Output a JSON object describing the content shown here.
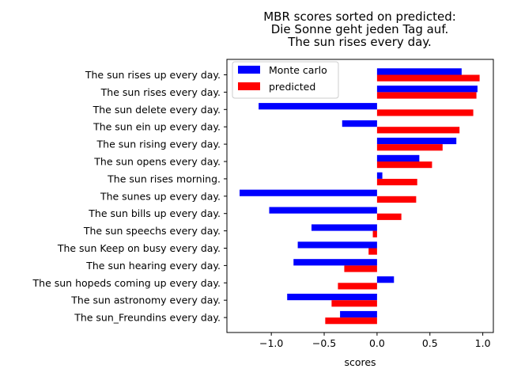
{
  "chart_data": {
    "type": "bar",
    "orientation": "horizontal",
    "title": "MBR scores sorted on predicted:\nDie Sonne geht jeden Tag auf.\nThe sun rises every day.",
    "xlabel": "scores",
    "ylabel": "",
    "xlim": [
      -1.42,
      1.1
    ],
    "xticks": [
      -1.0,
      -0.5,
      0.0,
      0.5,
      1.0
    ],
    "xtick_labels": [
      "−1.0",
      "−0.5",
      "0.0",
      "0.5",
      "1.0"
    ],
    "grid": false,
    "legend_position": "upper-left",
    "categories": [
      "The sun rises up every day.",
      "The sun rises every day.",
      "The sun delete every day.",
      "The sun ein up every day.",
      "The sun rising every day.",
      "The sun opens every day.",
      "The sun rises morning.",
      "The sunes up every day.",
      "The sun bills up every day.",
      "The sun speechs every day.",
      "The sun Keep on busy every day.",
      "The sun hearing every day.",
      "The sun hopeds coming up every day.",
      "The sun astronomy every day.",
      "The sun_Freundins every day."
    ],
    "series": [
      {
        "name": "Monte carlo",
        "color": "#0000ff",
        "values": [
          0.8,
          0.95,
          -1.12,
          -0.33,
          0.75,
          0.4,
          0.05,
          -1.3,
          -1.02,
          -0.62,
          -0.75,
          -0.79,
          0.16,
          -0.85,
          -0.35
        ]
      },
      {
        "name": "predicted",
        "color": "#ff0000",
        "values": [
          0.97,
          0.94,
          0.91,
          0.78,
          0.62,
          0.52,
          0.38,
          0.37,
          0.23,
          -0.04,
          -0.08,
          -0.31,
          -0.37,
          -0.43,
          -0.49
        ]
      }
    ]
  }
}
